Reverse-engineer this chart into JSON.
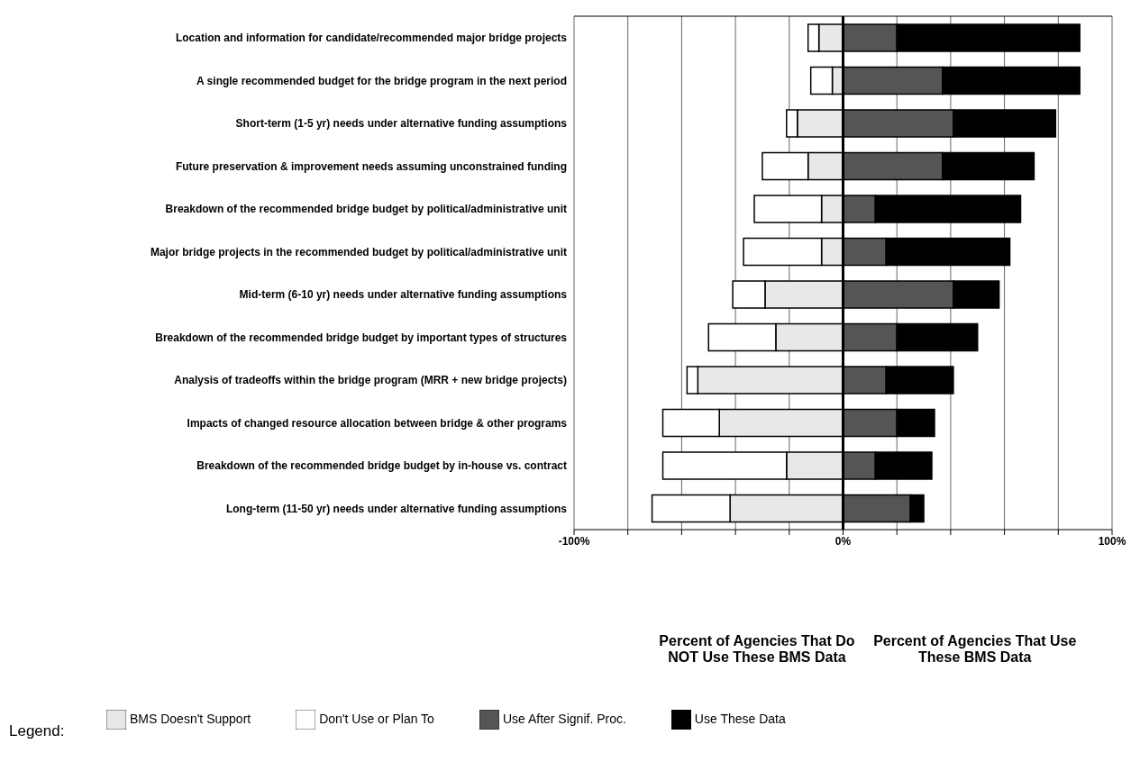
{
  "chart_data": {
    "type": "bar",
    "orientation": "horizontal",
    "stacked": true,
    "categories": [
      "Location and information for candidate/recommended major bridge projects",
      "A single recommended budget for the bridge program in the next period",
      "Short-term (1-5 yr) needs under alternative funding assumptions",
      "Future preservation & improvement needs assuming unconstrained funding",
      "Breakdown of the recommended bridge budget by political/administrative unit",
      "Major bridge projects in the recommended budget by political/administrative unit",
      "Mid-term (6-10 yr) needs under alternative funding assumptions",
      "Breakdown of the recommended bridge budget by important types of structures",
      "Analysis of tradeoffs within the bridge program (MRR + new bridge projects)",
      "Impacts of changed resource allocation between bridge & other programs",
      "Breakdown of the recommended bridge budget by in-house vs. contract",
      "Long-term (11-50 yr) needs under alternative funding assumptions"
    ],
    "series": [
      {
        "name": "BMS Doesn't Support",
        "color": "#e8e8e8",
        "values": [
          -9,
          -4,
          -17,
          -13,
          -8,
          -8,
          -29,
          -25,
          -54,
          -46,
          -21,
          -42
        ]
      },
      {
        "name": "Don't Use or Plan To",
        "color": "#ffffff",
        "values": [
          -4,
          -8,
          -4,
          -17,
          -25,
          -29,
          -12,
          -25,
          -4,
          -21,
          -46,
          -29
        ]
      },
      {
        "name": "Use After Signif. Proc.",
        "color": "#555555",
        "values": [
          20,
          37,
          41,
          37,
          12,
          16,
          41,
          20,
          16,
          20,
          12,
          25
        ]
      },
      {
        "name": "Use These Data",
        "color": "#000000",
        "values": [
          68,
          51,
          38,
          34,
          54,
          46,
          17,
          30,
          25,
          14,
          21,
          5
        ]
      }
    ],
    "xlim": [
      -100,
      100
    ],
    "xticks": [
      {
        "value": -100,
        "label": "-100%"
      },
      {
        "value": -80,
        "label": null
      },
      {
        "value": -60,
        "label": null
      },
      {
        "value": -40,
        "label": null
      },
      {
        "value": -20,
        "label": null
      },
      {
        "value": 0,
        "label": "0%"
      },
      {
        "value": 20,
        "label": null
      },
      {
        "value": 40,
        "label": null
      },
      {
        "value": 60,
        "label": null
      },
      {
        "value": 80,
        "label": null
      },
      {
        "value": 100,
        "label": "100%"
      }
    ],
    "ref_lines": [
      {
        "axis": "x",
        "value": 0,
        "color": "#000000"
      }
    ],
    "grid": "x",
    "legend": "bottom",
    "legend_title": "Legend:",
    "annotations": [
      "Percent of Agencies That Do NOT Use These BMS Data",
      "Percent of Agencies That Use These BMS Data"
    ]
  }
}
